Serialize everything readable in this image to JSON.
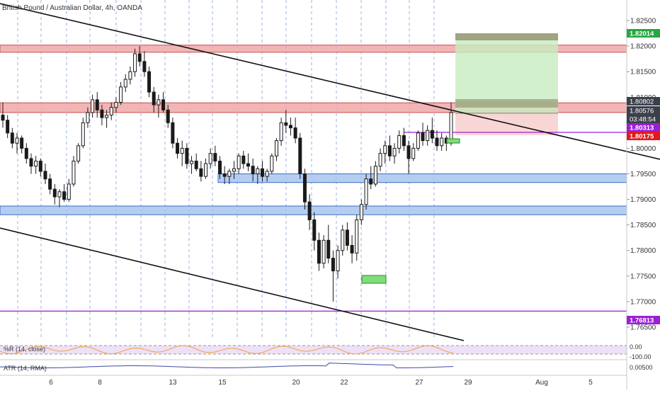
{
  "chart_data": {
    "type": "candlestick",
    "title": "British Pound / Australian Dollar, 4h, OANDA",
    "ylim": [
      1.7625,
      1.8275
    ],
    "y_ticks": [
      "1.82500",
      "1.82000",
      "1.81500",
      "1.81000",
      "1.80500",
      "1.80000",
      "1.79500",
      "1.79000",
      "1.78500",
      "1.78000",
      "1.77500",
      "1.77000",
      "1.76500"
    ],
    "x_ticks": [
      "6",
      "8",
      "13",
      "15",
      "20",
      "22",
      "27",
      "29",
      "Aug",
      "5"
    ],
    "price_labels": [
      {
        "text": "1.82014",
        "value": 1.82014,
        "color": "#26a641"
      },
      {
        "text": "1.80802",
        "value": 1.80802,
        "color": "#3b3f4a"
      },
      {
        "text": "1.80576",
        "value": 1.80576,
        "color": "#3b3f4a"
      },
      {
        "text": "03:48:54",
        "value": 1.80452,
        "color": "#3b3f4a"
      },
      {
        "text": "1.80313",
        "value": 1.80313,
        "color": "#9c1fd6"
      },
      {
        "text": "1.80175",
        "value": 1.80175,
        "color": "#e0191f"
      },
      {
        "text": "1.76813",
        "value": 1.76813,
        "color": "#9c1fd6"
      }
    ],
    "zones": [
      {
        "name": "resistance-zone-top",
        "from": 1.8188,
        "to": 1.8202,
        "fill": "#f0a8a8",
        "stroke": "#c85050"
      },
      {
        "name": "resistance-zone-middle",
        "from": 1.807,
        "to": 1.8089,
        "fill": "#f0a8a8",
        "stroke": "#c85050"
      },
      {
        "name": "support-zone-upper",
        "from": 1.7933,
        "to": 1.795,
        "fill": "#a8c4ee",
        "stroke": "#3b6fc4"
      },
      {
        "name": "support-zone-lower",
        "from": 1.787,
        "to": 1.7887,
        "fill": "#a8c4ee",
        "stroke": "#3b6fc4"
      }
    ],
    "levels": [
      {
        "name": "purple-level-upper",
        "value": 1.80313,
        "color": "#9c1fd6"
      },
      {
        "name": "purple-level-lower",
        "value": 1.76813,
        "color": "#9c1fd6"
      }
    ],
    "indicators": [
      {
        "label": "%R (14, close)",
        "ticks": [
          "0.00",
          "-100.00"
        ]
      },
      {
        "label": "ATR (14, RMA)",
        "ticks": [
          "0.00500"
        ]
      }
    ],
    "candles": [
      [
        1.8065,
        1.809,
        1.804,
        1.8055
      ],
      [
        1.8055,
        1.8065,
        1.802,
        1.803
      ],
      [
        1.803,
        1.804,
        1.8,
        1.801
      ],
      [
        1.801,
        1.803,
        1.799,
        1.802
      ],
      [
        1.802,
        1.8025,
        1.799,
        1.8
      ],
      [
        1.8,
        1.801,
        1.797,
        1.798
      ],
      [
        1.798,
        1.799,
        1.795,
        1.7965
      ],
      [
        1.7965,
        1.7985,
        1.795,
        1.7975
      ],
      [
        1.7975,
        1.798,
        1.7945,
        1.7955
      ],
      [
        1.7955,
        1.797,
        1.793,
        1.794
      ],
      [
        1.794,
        1.795,
        1.791,
        1.792
      ],
      [
        1.792,
        1.793,
        1.789,
        1.7905
      ],
      [
        1.7905,
        1.792,
        1.7885,
        1.7915
      ],
      [
        1.7915,
        1.793,
        1.7895,
        1.79
      ],
      [
        1.79,
        1.794,
        1.7895,
        1.793
      ],
      [
        1.793,
        1.7985,
        1.7925,
        1.7975
      ],
      [
        1.7975,
        1.801,
        1.797,
        1.8005
      ],
      [
        1.8005,
        1.806,
        1.8,
        1.805
      ],
      [
        1.805,
        1.808,
        1.804,
        1.807
      ],
      [
        1.807,
        1.8105,
        1.806,
        1.8095
      ],
      [
        1.8095,
        1.811,
        1.806,
        1.8075
      ],
      [
        1.8075,
        1.8085,
        1.8045,
        1.806
      ],
      [
        1.806,
        1.8075,
        1.804,
        1.8065
      ],
      [
        1.8065,
        1.809,
        1.8055,
        1.808
      ],
      [
        1.808,
        1.81,
        1.807,
        1.809
      ],
      [
        1.809,
        1.813,
        1.8085,
        1.812
      ],
      [
        1.812,
        1.8145,
        1.811,
        1.8135
      ],
      [
        1.8135,
        1.816,
        1.8125,
        1.815
      ],
      [
        1.815,
        1.8195,
        1.814,
        1.8185
      ],
      [
        1.8185,
        1.82,
        1.816,
        1.817
      ],
      [
        1.817,
        1.819,
        1.814,
        1.815
      ],
      [
        1.815,
        1.816,
        1.81,
        1.811
      ],
      [
        1.811,
        1.812,
        1.807,
        1.8085
      ],
      [
        1.8085,
        1.8105,
        1.806,
        1.8095
      ],
      [
        1.8095,
        1.811,
        1.807,
        1.8075
      ],
      [
        1.8075,
        1.8085,
        1.804,
        1.805
      ],
      [
        1.805,
        1.806,
        1.8,
        1.801
      ],
      [
        1.801,
        1.802,
        1.798,
        1.799
      ],
      [
        1.799,
        1.8015,
        1.7965,
        1.8
      ],
      [
        1.8,
        1.801,
        1.796,
        1.797
      ],
      [
        1.797,
        1.7985,
        1.795,
        1.7975
      ],
      [
        1.7975,
        1.799,
        1.7955,
        1.796
      ],
      [
        1.796,
        1.7975,
        1.7935,
        1.7945
      ],
      [
        1.7945,
        1.798,
        1.794,
        1.797
      ],
      [
        1.797,
        1.8,
        1.796,
        1.799
      ],
      [
        1.799,
        1.8005,
        1.7965,
        1.7975
      ],
      [
        1.7975,
        1.7985,
        1.794,
        1.795
      ],
      [
        1.795,
        1.7965,
        1.793,
        1.7945
      ],
      [
        1.7945,
        1.796,
        1.793,
        1.7955
      ],
      [
        1.7955,
        1.7975,
        1.794,
        1.796
      ],
      [
        1.796,
        1.799,
        1.795,
        1.7985
      ],
      [
        1.7985,
        1.7995,
        1.796,
        1.797
      ],
      [
        1.797,
        1.799,
        1.7955,
        1.7965
      ],
      [
        1.7965,
        1.798,
        1.7935,
        1.795
      ],
      [
        1.795,
        1.7965,
        1.793,
        1.796
      ],
      [
        1.796,
        1.7975,
        1.7935,
        1.7945
      ],
      [
        1.7945,
        1.796,
        1.7935,
        1.7955
      ],
      [
        1.7955,
        1.799,
        1.795,
        1.7985
      ],
      [
        1.7985,
        1.802,
        1.7975,
        1.8015
      ],
      [
        1.8015,
        1.806,
        1.8005,
        1.805
      ],
      [
        1.805,
        1.8075,
        1.803,
        1.8045
      ],
      [
        1.8045,
        1.806,
        1.8025,
        1.804
      ],
      [
        1.804,
        1.806,
        1.801,
        1.802
      ],
      [
        1.802,
        1.803,
        1.794,
        1.795
      ],
      [
        1.795,
        1.796,
        1.788,
        1.7895
      ],
      [
        1.7895,
        1.791,
        1.784,
        1.786
      ],
      [
        1.786,
        1.7875,
        1.78,
        1.782
      ],
      [
        1.782,
        1.7835,
        1.776,
        1.7775
      ],
      [
        1.7775,
        1.783,
        1.7765,
        1.782
      ],
      [
        1.782,
        1.785,
        1.7775,
        1.7785
      ],
      [
        1.7785,
        1.78,
        1.77,
        1.776
      ],
      [
        1.776,
        1.781,
        1.7745,
        1.78
      ],
      [
        1.78,
        1.785,
        1.779,
        1.784
      ],
      [
        1.784,
        1.7855,
        1.78,
        1.781
      ],
      [
        1.781,
        1.783,
        1.7775,
        1.7795
      ],
      [
        1.7795,
        1.787,
        1.778,
        1.786
      ],
      [
        1.786,
        1.79,
        1.785,
        1.789
      ],
      [
        1.789,
        1.795,
        1.788,
        1.794
      ],
      [
        1.794,
        1.7965,
        1.792,
        1.793
      ],
      [
        1.793,
        1.7975,
        1.7925,
        1.7965
      ],
      [
        1.7965,
        1.8,
        1.7955,
        1.799
      ],
      [
        1.799,
        1.8015,
        1.797,
        1.8005
      ],
      [
        1.8005,
        1.8025,
        1.7975,
        1.7985
      ],
      [
        1.7985,
        1.801,
        1.797,
        1.8
      ],
      [
        1.8,
        1.8035,
        1.799,
        1.8025
      ],
      [
        1.8025,
        1.804,
        1.7995,
        1.8005
      ],
      [
        1.8005,
        1.8015,
        1.795,
        1.798
      ],
      [
        1.798,
        1.801,
        1.7975,
        1.8
      ],
      [
        1.8,
        1.8035,
        1.7995,
        1.803
      ],
      [
        1.803,
        1.805,
        1.8005,
        1.8015
      ],
      [
        1.8015,
        1.8045,
        1.8005,
        1.8035
      ],
      [
        1.8035,
        1.806,
        1.801,
        1.802
      ],
      [
        1.802,
        1.8035,
        1.7995,
        1.8005
      ],
      [
        1.8005,
        1.803,
        1.7995,
        1.802
      ],
      [
        1.802,
        1.8025,
        1.7995,
        1.801
      ],
      [
        1.801,
        1.809,
        1.8005,
        1.807
      ]
    ]
  }
}
